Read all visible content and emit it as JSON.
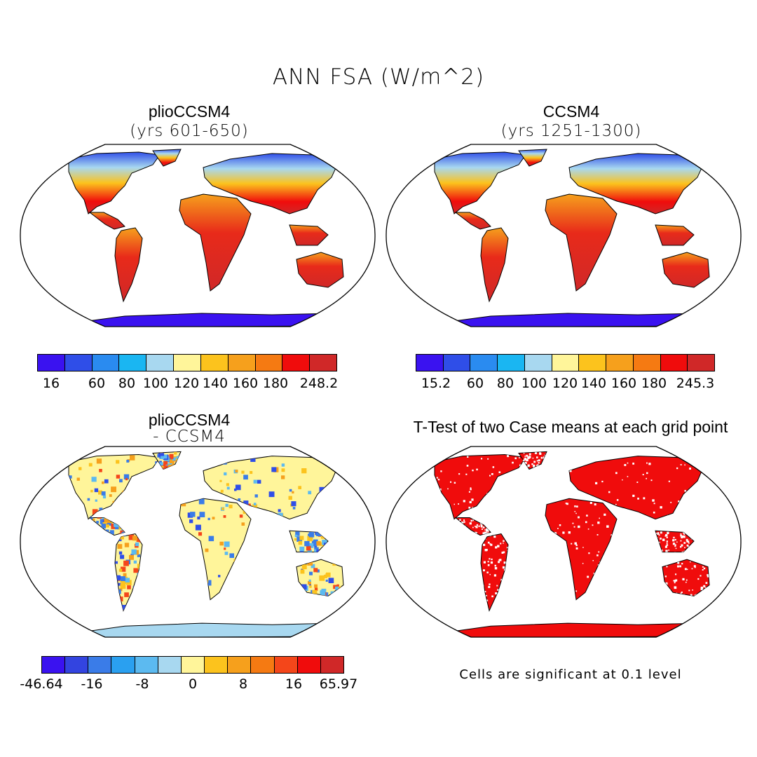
{
  "title": "ANN FSA (W/m^2)",
  "panels": [
    {
      "id": "plio",
      "title": "plioCCSM4",
      "subtitle": "(yrs 601-650)",
      "colorbar": {
        "colors": [
          "#3a12f0",
          "#2f4ee8",
          "#2a8bf0",
          "#1ab6f2",
          "#a8d8f0",
          "#fff59a",
          "#fcc31d",
          "#f6a01c",
          "#f57a12",
          "#f00c0c",
          "#d02828"
        ],
        "labels": [
          "16",
          "60",
          "80",
          "100",
          "120",
          "140",
          "160",
          "180",
          "248.2"
        ]
      }
    },
    {
      "id": "ccsm4",
      "title": "CCSM4",
      "subtitle": "(yrs 1251-1300)",
      "colorbar": {
        "colors": [
          "#3a12f0",
          "#2f4ee8",
          "#2a8bf0",
          "#1ab6f2",
          "#a8d8f0",
          "#fff59a",
          "#fcc31d",
          "#f6a01c",
          "#f57a12",
          "#f00c0c",
          "#d02828"
        ],
        "labels": [
          "15.2",
          "60",
          "80",
          "100",
          "120",
          "140",
          "160",
          "180",
          "245.3"
        ]
      }
    },
    {
      "id": "diff",
      "title": "plioCCSM4",
      "subtitle": "- CCSM4",
      "colorbar": {
        "colors": [
          "#3a12f0",
          "#3344e0",
          "#3a7ce8",
          "#2aa0f0",
          "#5cbaf0",
          "#a8d8f0",
          "#fff59a",
          "#fcc31d",
          "#f6a01c",
          "#f57a12",
          "#f4461a",
          "#f00c0c",
          "#d02828"
        ],
        "labels": [
          "-46.64",
          "-16",
          "-8",
          "0",
          "8",
          "16",
          "65.97"
        ]
      }
    },
    {
      "id": "ttest",
      "title": "T-Test of two Case means at each grid point",
      "note": "Cells are significant at 0.1 level"
    }
  ]
}
